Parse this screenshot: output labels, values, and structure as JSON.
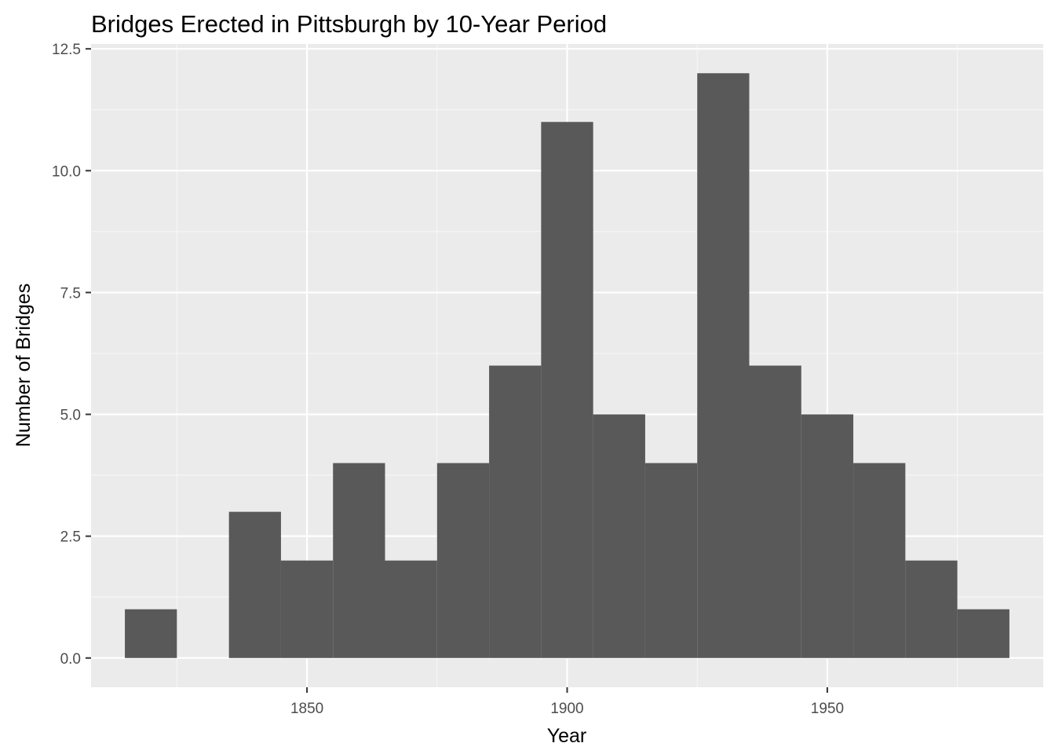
{
  "chart_data": {
    "type": "bar",
    "title": "Bridges Erected in Pittsburgh by 10-Year Period",
    "xlabel": "Year",
    "ylabel": "Number of Bridges",
    "bin_width": 10,
    "bins": [
      {
        "start": 1815,
        "end": 1825,
        "count": 1
      },
      {
        "start": 1825,
        "end": 1835,
        "count": 0
      },
      {
        "start": 1835,
        "end": 1845,
        "count": 3
      },
      {
        "start": 1845,
        "end": 1855,
        "count": 2
      },
      {
        "start": 1855,
        "end": 1865,
        "count": 4
      },
      {
        "start": 1865,
        "end": 1875,
        "count": 2
      },
      {
        "start": 1875,
        "end": 1885,
        "count": 4
      },
      {
        "start": 1885,
        "end": 1895,
        "count": 6
      },
      {
        "start": 1895,
        "end": 1905,
        "count": 11
      },
      {
        "start": 1905,
        "end": 1915,
        "count": 5
      },
      {
        "start": 1915,
        "end": 1925,
        "count": 4
      },
      {
        "start": 1925,
        "end": 1935,
        "count": 12
      },
      {
        "start": 1935,
        "end": 1945,
        "count": 6
      },
      {
        "start": 1945,
        "end": 1955,
        "count": 5
      },
      {
        "start": 1955,
        "end": 1965,
        "count": 4
      },
      {
        "start": 1965,
        "end": 1975,
        "count": 2
      },
      {
        "start": 1975,
        "end": 1985,
        "count": 1
      }
    ],
    "xlim": [
      1808.5,
      1991.5
    ],
    "ylim": [
      -0.6,
      12.6
    ],
    "x_ticks": [
      1850,
      1900,
      1950
    ],
    "x_tick_labels": [
      "1850",
      "1900",
      "1950"
    ],
    "x_minor_ticks": [
      1825,
      1875,
      1925,
      1975
    ],
    "y_ticks": [
      0,
      2.5,
      5,
      7.5,
      10,
      12.5
    ],
    "y_tick_labels": [
      "0.0",
      "2.5",
      "5.0",
      "7.5",
      "10.0",
      "12.5"
    ],
    "y_minor_ticks": [
      1.25,
      3.75,
      6.25,
      8.75,
      11.25
    ],
    "grid": true,
    "legend": "none",
    "colors": {
      "panel_background": "#ebebeb",
      "grid_major": "#ffffff",
      "grid_minor": "#f7f7f7",
      "bar_fill": "#595959",
      "tick_mark": "#333333",
      "tick_text": "#4d4d4d",
      "text": "#000000"
    }
  }
}
